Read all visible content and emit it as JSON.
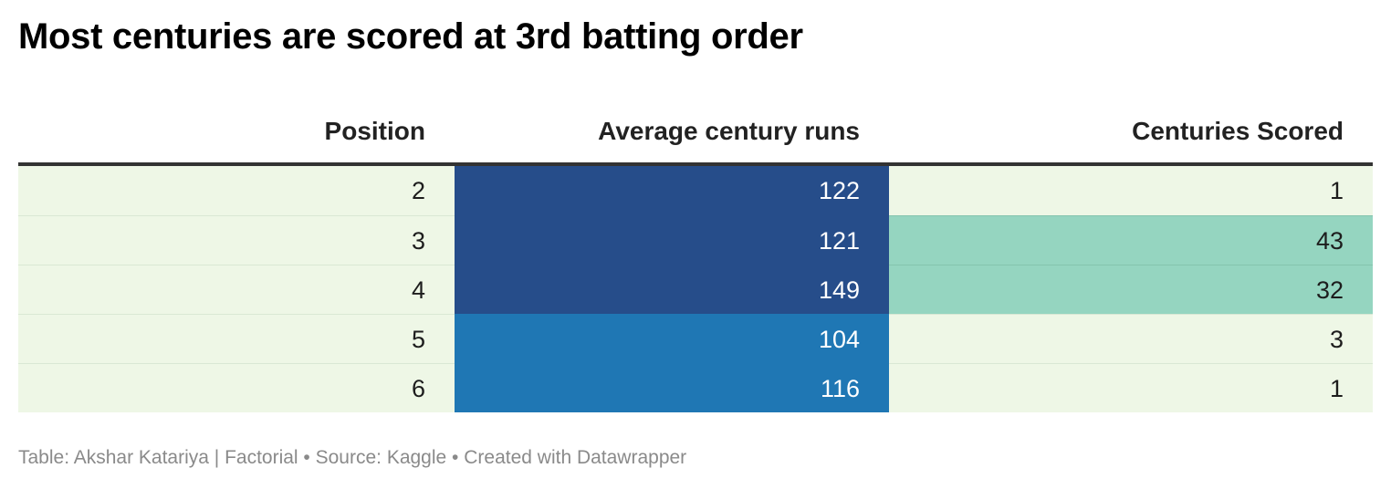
{
  "chart_data": {
    "type": "table",
    "title": "Most centuries are scored at 3rd batting order",
    "columns": [
      "Position",
      "Average century runs",
      "Centuries Scored"
    ],
    "rows": [
      {
        "position": "2",
        "avg_runs": "122",
        "centuries": "1"
      },
      {
        "position": "3",
        "avg_runs": "121",
        "centuries": "43"
      },
      {
        "position": "4",
        "avg_runs": "149",
        "centuries": "32"
      },
      {
        "position": "5",
        "avg_runs": "104",
        "centuries": "3"
      },
      {
        "position": "6",
        "avg_runs": "116",
        "centuries": "1"
      }
    ]
  },
  "footer": {
    "text": "Table: Akshar Katariya | Factorial • Source: Kaggle • Created with Datawrapper"
  },
  "colors": {
    "row_background": "#eef7e6",
    "avg_high": "#264d8a",
    "avg_low": "#1f77b4",
    "centuries_high": "#95d5c0",
    "text_dark": "#1d1d1d",
    "text_light": "#ffffff",
    "header_rule": "#333333",
    "footer_text": "#8a8a8a"
  }
}
